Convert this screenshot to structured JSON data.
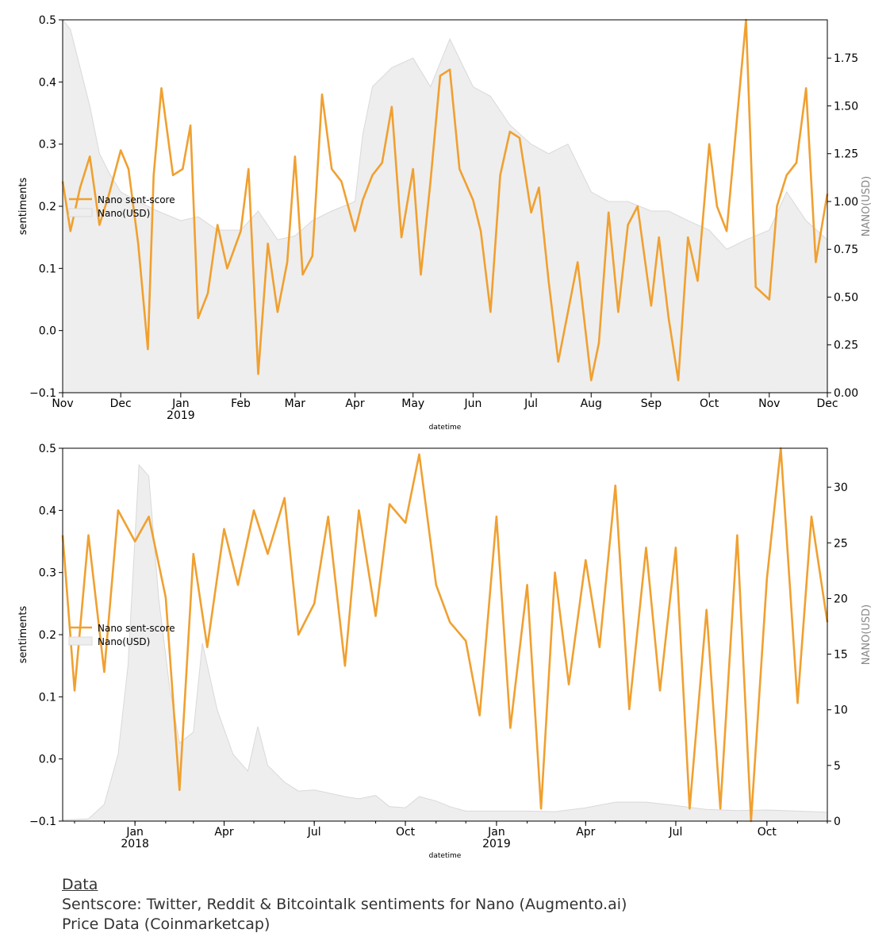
{
  "colors": {
    "sentiment": "#f0a030",
    "price_fill": "#eeeeee",
    "price_edge": "#d9d9d9",
    "axis": "#000000",
    "right_label": "#888888"
  },
  "caption": {
    "heading": "Data",
    "line1": "Sentscore: Twitter, Reddit & Bitcointalk sentiments for Nano (Augmento.ai)",
    "line2": "Price Data (Coinmarketcap)"
  },
  "chart_data": [
    {
      "type": "line",
      "xlabel": "datetime",
      "ylabel": "sentiments",
      "y2label": "NANO(USD)",
      "ylim": [
        -0.1,
        0.5
      ],
      "y2lim": [
        0,
        1.95
      ],
      "yticks": [
        "−0.1",
        "0.0",
        "0.1",
        "0.2",
        "0.3",
        "0.4",
        "0.5"
      ],
      "y2ticks": [
        "0.00",
        "0.25",
        "0.50",
        "0.75",
        "1.00",
        "1.25",
        "1.50",
        "1.75"
      ],
      "xticks": [
        {
          "label": "Nov",
          "sub": ""
        },
        {
          "label": "Dec",
          "sub": ""
        },
        {
          "label": "Jan",
          "sub": "2019"
        },
        {
          "label": "Feb",
          "sub": ""
        },
        {
          "label": "Mar",
          "sub": ""
        },
        {
          "label": "Apr",
          "sub": ""
        },
        {
          "label": "May",
          "sub": ""
        },
        {
          "label": "Jun",
          "sub": ""
        },
        {
          "label": "Jul",
          "sub": ""
        },
        {
          "label": "Aug",
          "sub": ""
        },
        {
          "label": "Sep",
          "sub": ""
        },
        {
          "label": "Oct",
          "sub": ""
        },
        {
          "label": "Nov",
          "sub": ""
        },
        {
          "label": "Dec",
          "sub": ""
        }
      ],
      "x_domain": [
        "2018-11-01",
        "2019-12-01"
      ],
      "legend": [
        "Nano sent-score",
        "Nano(USD)"
      ],
      "legend_position": "center-left",
      "series": [
        {
          "name": "Nano sent-score",
          "x": [
            "2018-11-01",
            "2018-11-05",
            "2018-11-10",
            "2018-11-15",
            "2018-11-20",
            "2018-11-25",
            "2018-12-01",
            "2018-12-05",
            "2018-12-10",
            "2018-12-15",
            "2018-12-18",
            "2018-12-22",
            "2018-12-28",
            "2019-01-02",
            "2019-01-06",
            "2019-01-10",
            "2019-01-15",
            "2019-01-20",
            "2019-01-25",
            "2019-02-01",
            "2019-02-05",
            "2019-02-10",
            "2019-02-15",
            "2019-02-20",
            "2019-02-25",
            "2019-03-01",
            "2019-03-05",
            "2019-03-10",
            "2019-03-15",
            "2019-03-20",
            "2019-03-25",
            "2019-04-01",
            "2019-04-05",
            "2019-04-10",
            "2019-04-15",
            "2019-04-20",
            "2019-04-25",
            "2019-05-01",
            "2019-05-05",
            "2019-05-10",
            "2019-05-15",
            "2019-05-20",
            "2019-05-25",
            "2019-06-01",
            "2019-06-05",
            "2019-06-10",
            "2019-06-15",
            "2019-06-20",
            "2019-06-25",
            "2019-07-01",
            "2019-07-05",
            "2019-07-10",
            "2019-07-15",
            "2019-07-20",
            "2019-07-25",
            "2019-08-01",
            "2019-08-05",
            "2019-08-10",
            "2019-08-15",
            "2019-08-20",
            "2019-08-25",
            "2019-09-01",
            "2019-09-05",
            "2019-09-10",
            "2019-09-15",
            "2019-09-20",
            "2019-09-25",
            "2019-10-01",
            "2019-10-05",
            "2019-10-10",
            "2019-10-15",
            "2019-10-20",
            "2019-10-25",
            "2019-11-01",
            "2019-11-05",
            "2019-11-10",
            "2019-11-15",
            "2019-11-20",
            "2019-11-25",
            "2019-12-01"
          ],
          "y": [
            0.24,
            0.16,
            0.23,
            0.28,
            0.17,
            0.22,
            0.29,
            0.26,
            0.14,
            -0.03,
            0.25,
            0.39,
            0.25,
            0.26,
            0.33,
            0.02,
            0.06,
            0.17,
            0.1,
            0.16,
            0.26,
            -0.07,
            0.14,
            0.03,
            0.11,
            0.28,
            0.09,
            0.12,
            0.38,
            0.26,
            0.24,
            0.16,
            0.21,
            0.25,
            0.27,
            0.36,
            0.15,
            0.26,
            0.09,
            0.24,
            0.41,
            0.42,
            0.26,
            0.21,
            0.16,
            0.03,
            0.25,
            0.32,
            0.31,
            0.19,
            0.23,
            0.08,
            -0.05,
            0.03,
            0.11,
            -0.08,
            -0.02,
            0.19,
            0.03,
            0.17,
            0.2,
            0.04,
            0.15,
            0.02,
            -0.08,
            0.15,
            0.08,
            0.3,
            0.2,
            0.16,
            0.33,
            0.5,
            0.07,
            0.05,
            0.2,
            0.25,
            0.27,
            0.39,
            0.11,
            0.22
          ]
        },
        {
          "name": "Nano(USD)",
          "x": [
            "2018-11-01",
            "2018-11-05",
            "2018-11-10",
            "2018-11-15",
            "2018-11-20",
            "2018-11-25",
            "2018-12-01",
            "2018-12-10",
            "2018-12-20",
            "2019-01-01",
            "2019-01-10",
            "2019-01-20",
            "2019-02-01",
            "2019-02-10",
            "2019-02-20",
            "2019-03-01",
            "2019-03-10",
            "2019-03-20",
            "2019-04-01",
            "2019-04-05",
            "2019-04-10",
            "2019-04-20",
            "2019-05-01",
            "2019-05-10",
            "2019-05-20",
            "2019-06-01",
            "2019-06-10",
            "2019-06-20",
            "2019-07-01",
            "2019-07-10",
            "2019-07-20",
            "2019-08-01",
            "2019-08-10",
            "2019-08-20",
            "2019-09-01",
            "2019-09-10",
            "2019-09-20",
            "2019-10-01",
            "2019-10-10",
            "2019-10-20",
            "2019-11-01",
            "2019-11-10",
            "2019-11-20",
            "2019-12-01"
          ],
          "y": [
            1.95,
            1.9,
            1.7,
            1.5,
            1.25,
            1.15,
            1.05,
            1.0,
            0.95,
            0.9,
            0.92,
            0.85,
            0.85,
            0.95,
            0.8,
            0.82,
            0.9,
            0.95,
            1.0,
            1.35,
            1.6,
            1.7,
            1.75,
            1.6,
            1.85,
            1.6,
            1.55,
            1.4,
            1.3,
            1.25,
            1.3,
            1.05,
            1.0,
            1.0,
            0.95,
            0.95,
            0.9,
            0.85,
            0.75,
            0.8,
            0.85,
            1.05,
            0.9,
            0.8
          ]
        }
      ]
    },
    {
      "type": "line",
      "xlabel": "datetime",
      "ylabel": "sentiments",
      "y2label": "NANO(USD)",
      "ylim": [
        -0.1,
        0.5
      ],
      "y2lim": [
        0,
        33.5
      ],
      "yticks": [
        "−0.1",
        "0.0",
        "0.1",
        "0.2",
        "0.3",
        "0.4",
        "0.5"
      ],
      "y2ticks": [
        "0",
        "5",
        "10",
        "15",
        "20",
        "25",
        "30"
      ],
      "xticks": [
        {
          "label": "Jan",
          "sub": "2018"
        },
        {
          "label": "Apr",
          "sub": ""
        },
        {
          "label": "Jul",
          "sub": ""
        },
        {
          "label": "Oct",
          "sub": ""
        },
        {
          "label": "Jan",
          "sub": "2019"
        },
        {
          "label": "Apr",
          "sub": ""
        },
        {
          "label": "Jul",
          "sub": ""
        },
        {
          "label": "Oct",
          "sub": ""
        }
      ],
      "x_domain": [
        "2017-10-20",
        "2019-12-01"
      ],
      "legend": [
        "Nano sent-score",
        "Nano(USD)"
      ],
      "legend_position": "center-left",
      "series": [
        {
          "name": "Nano sent-score",
          "x": [
            "2017-10-20",
            "2017-11-01",
            "2017-11-15",
            "2017-12-01",
            "2017-12-15",
            "2018-01-01",
            "2018-01-15",
            "2018-02-01",
            "2018-02-15",
            "2018-03-01",
            "2018-03-15",
            "2018-04-01",
            "2018-04-15",
            "2018-05-01",
            "2018-05-15",
            "2018-06-01",
            "2018-06-15",
            "2018-07-01",
            "2018-07-15",
            "2018-08-01",
            "2018-08-15",
            "2018-09-01",
            "2018-09-15",
            "2018-10-01",
            "2018-10-15",
            "2018-11-01",
            "2018-11-15",
            "2018-12-01",
            "2018-12-15",
            "2019-01-01",
            "2019-01-15",
            "2019-02-01",
            "2019-02-15",
            "2019-03-01",
            "2019-03-15",
            "2019-04-01",
            "2019-04-15",
            "2019-05-01",
            "2019-05-15",
            "2019-06-01",
            "2019-06-15",
            "2019-07-01",
            "2019-07-15",
            "2019-08-01",
            "2019-08-15",
            "2019-09-01",
            "2019-09-15",
            "2019-10-01",
            "2019-10-15",
            "2019-11-01",
            "2019-11-15",
            "2019-12-01"
          ],
          "y": [
            0.36,
            0.11,
            0.36,
            0.14,
            0.4,
            0.35,
            0.39,
            0.26,
            -0.05,
            0.33,
            0.18,
            0.37,
            0.28,
            0.4,
            0.33,
            0.42,
            0.2,
            0.25,
            0.39,
            0.15,
            0.4,
            0.23,
            0.41,
            0.38,
            0.49,
            0.28,
            0.22,
            0.19,
            0.07,
            0.39,
            0.05,
            0.28,
            -0.08,
            0.3,
            0.12,
            0.32,
            0.18,
            0.44,
            0.08,
            0.34,
            0.11,
            0.34,
            -0.08,
            0.24,
            -0.08,
            0.36,
            -0.1,
            0.29,
            0.5,
            0.09,
            0.39,
            0.22
          ]
        },
        {
          "name": "Nano(USD)",
          "x": [
            "2017-10-20",
            "2017-11-15",
            "2017-12-01",
            "2017-12-15",
            "2017-12-25",
            "2018-01-05",
            "2018-01-15",
            "2018-01-25",
            "2018-02-05",
            "2018-02-15",
            "2018-03-01",
            "2018-03-10",
            "2018-03-25",
            "2018-04-10",
            "2018-04-25",
            "2018-05-05",
            "2018-05-15",
            "2018-06-01",
            "2018-06-15",
            "2018-07-01",
            "2018-08-01",
            "2018-08-15",
            "2018-09-01",
            "2018-09-15",
            "2018-10-01",
            "2018-10-15",
            "2018-11-01",
            "2018-11-15",
            "2018-12-01",
            "2018-12-15",
            "2019-01-01",
            "2019-02-01",
            "2019-03-01",
            "2019-04-01",
            "2019-05-01",
            "2019-06-01",
            "2019-07-01",
            "2019-08-01",
            "2019-09-01",
            "2019-10-01",
            "2019-11-01",
            "2019-12-01"
          ],
          "y": [
            0.1,
            0.2,
            1.5,
            6,
            14,
            32,
            31,
            20,
            12,
            7,
            8,
            16,
            10,
            6,
            4.5,
            8.5,
            5,
            3.5,
            2.7,
            2.8,
            2.2,
            2.0,
            2.3,
            1.3,
            1.2,
            2.2,
            1.8,
            1.3,
            0.9,
            0.9,
            0.9,
            0.9,
            0.85,
            1.2,
            1.7,
            1.7,
            1.4,
            1.05,
            0.95,
            1.0,
            0.9,
            0.8
          ]
        }
      ]
    }
  ]
}
